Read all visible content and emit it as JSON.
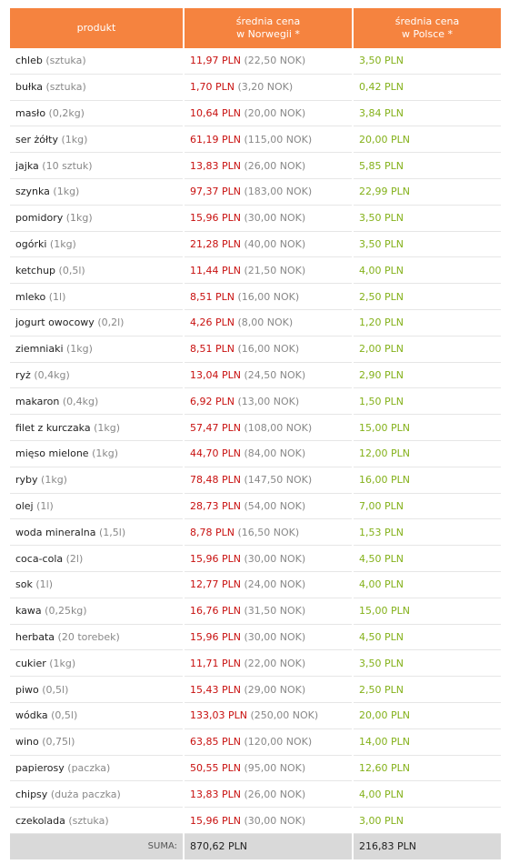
{
  "header": {
    "columns": [
      [
        "produkt"
      ],
      [
        "średnia cena",
        "w Norwegii *"
      ],
      [
        "średnia cena",
        "w Polsce *"
      ]
    ]
  },
  "table": {
    "rows": [
      {
        "product": "chleb",
        "unit": "(sztuka)",
        "no_pln": "11,97 PLN",
        "no_nok": "(22,50 NOK)",
        "pl_pln": "3,50 PLN"
      },
      {
        "product": "bułka",
        "unit": "(sztuka)",
        "no_pln": "1,70 PLN",
        "no_nok": "(3,20 NOK)",
        "pl_pln": "0,42 PLN"
      },
      {
        "product": "masło",
        "unit": "(0,2kg)",
        "no_pln": "10,64 PLN",
        "no_nok": "(20,00 NOK)",
        "pl_pln": "3,84 PLN"
      },
      {
        "product": "ser żółty",
        "unit": "(1kg)",
        "no_pln": "61,19 PLN",
        "no_nok": "(115,00 NOK)",
        "pl_pln": "20,00 PLN"
      },
      {
        "product": "jajka",
        "unit": "(10 sztuk)",
        "no_pln": "13,83 PLN",
        "no_nok": "(26,00 NOK)",
        "pl_pln": "5,85 PLN"
      },
      {
        "product": "szynka",
        "unit": "(1kg)",
        "no_pln": "97,37 PLN",
        "no_nok": "(183,00 NOK)",
        "pl_pln": "22,99 PLN"
      },
      {
        "product": "pomidory",
        "unit": "(1kg)",
        "no_pln": "15,96 PLN",
        "no_nok": "(30,00 NOK)",
        "pl_pln": "3,50 PLN"
      },
      {
        "product": "ogórki",
        "unit": "(1kg)",
        "no_pln": "21,28 PLN",
        "no_nok": "(40,00 NOK)",
        "pl_pln": "3,50 PLN"
      },
      {
        "product": "ketchup",
        "unit": "(0,5l)",
        "no_pln": "11,44 PLN",
        "no_nok": "(21,50 NOK)",
        "pl_pln": "4,00 PLN"
      },
      {
        "product": "mleko",
        "unit": "(1l)",
        "no_pln": "8,51 PLN",
        "no_nok": "(16,00 NOK)",
        "pl_pln": "2,50 PLN"
      },
      {
        "product": "jogurt owocowy",
        "unit": "(0,2l)",
        "no_pln": "4,26 PLN",
        "no_nok": "(8,00 NOK)",
        "pl_pln": "1,20 PLN"
      },
      {
        "product": "ziemniaki",
        "unit": "(1kg)",
        "no_pln": "8,51 PLN",
        "no_nok": "(16,00 NOK)",
        "pl_pln": "2,00 PLN"
      },
      {
        "product": "ryż",
        "unit": "(0,4kg)",
        "no_pln": "13,04 PLN",
        "no_nok": "(24,50 NOK)",
        "pl_pln": "2,90 PLN"
      },
      {
        "product": "makaron",
        "unit": "(0,4kg)",
        "no_pln": "6,92 PLN",
        "no_nok": "(13,00 NOK)",
        "pl_pln": "1,50 PLN"
      },
      {
        "product": "filet z kurczaka",
        "unit": "(1kg)",
        "no_pln": "57,47 PLN",
        "no_nok": "(108,00 NOK)",
        "pl_pln": "15,00 PLN"
      },
      {
        "product": "mięso mielone",
        "unit": "(1kg)",
        "no_pln": "44,70 PLN",
        "no_nok": "(84,00 NOK)",
        "pl_pln": "12,00 PLN"
      },
      {
        "product": "ryby",
        "unit": "(1kg)",
        "no_pln": "78,48 PLN",
        "no_nok": "(147,50 NOK)",
        "pl_pln": "16,00 PLN"
      },
      {
        "product": "olej",
        "unit": "(1l)",
        "no_pln": "28,73 PLN",
        "no_nok": "(54,00 NOK)",
        "pl_pln": "7,00 PLN"
      },
      {
        "product": "woda mineralna",
        "unit": "(1,5l)",
        "no_pln": "8,78 PLN",
        "no_nok": "(16,50 NOK)",
        "pl_pln": "1,53 PLN"
      },
      {
        "product": "coca-cola",
        "unit": "(2l)",
        "no_pln": "15,96 PLN",
        "no_nok": "(30,00 NOK)",
        "pl_pln": "4,50 PLN"
      },
      {
        "product": "sok",
        "unit": "(1l)",
        "no_pln": "12,77 PLN",
        "no_nok": "(24,00 NOK)",
        "pl_pln": "4,00 PLN"
      },
      {
        "product": "kawa",
        "unit": "(0,25kg)",
        "no_pln": "16,76 PLN",
        "no_nok": "(31,50 NOK)",
        "pl_pln": "15,00 PLN"
      },
      {
        "product": "herbata",
        "unit": "(20 torebek)",
        "no_pln": "15,96 PLN",
        "no_nok": "(30,00 NOK)",
        "pl_pln": "4,50 PLN"
      },
      {
        "product": "cukier",
        "unit": "(1kg)",
        "no_pln": "11,71 PLN",
        "no_nok": "(22,00 NOK)",
        "pl_pln": "3,50 PLN"
      },
      {
        "product": "piwo",
        "unit": "(0,5l)",
        "no_pln": "15,43 PLN",
        "no_nok": "(29,00 NOK)",
        "pl_pln": "2,50 PLN"
      },
      {
        "product": "wódka",
        "unit": "(0,5l)",
        "no_pln": "133,03 PLN",
        "no_nok": "(250,00 NOK)",
        "pl_pln": "20,00 PLN"
      },
      {
        "product": "wino",
        "unit": "(0,75l)",
        "no_pln": "63,85 PLN",
        "no_nok": "(120,00 NOK)",
        "pl_pln": "14,00 PLN"
      },
      {
        "product": "papierosy",
        "unit": "(paczka)",
        "no_pln": "50,55 PLN",
        "no_nok": "(95,00 NOK)",
        "pl_pln": "12,60 PLN"
      },
      {
        "product": "chipsy",
        "unit": "(duża paczka)",
        "no_pln": "13,83 PLN",
        "no_nok": "(26,00 NOK)",
        "pl_pln": "4,00 PLN"
      },
      {
        "product": "czekolada",
        "unit": "(sztuka)",
        "no_pln": "15,96 PLN",
        "no_nok": "(30,00 NOK)",
        "pl_pln": "3,00 PLN"
      }
    ]
  },
  "footer": {
    "label": "SUMA:",
    "no_total": "870,62 PLN",
    "pl_total": "216,83 PLN"
  }
}
